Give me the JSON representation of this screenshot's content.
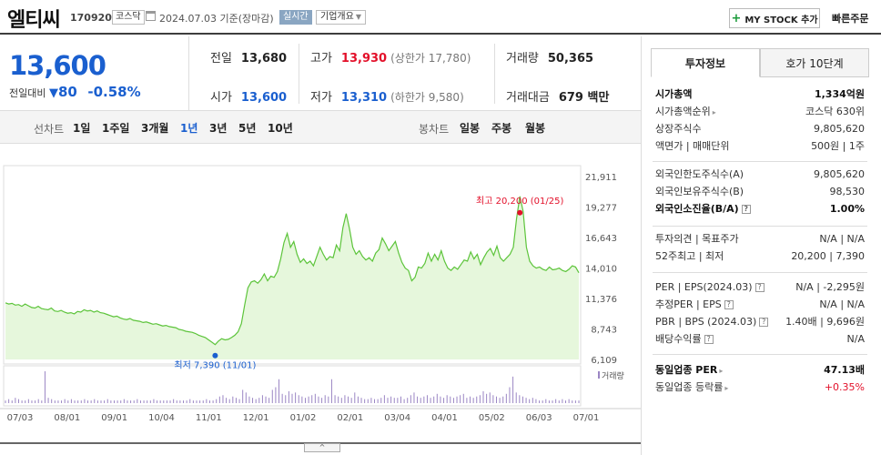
{
  "header": {
    "title": "엘티씨",
    "code": "170920",
    "market": "코스닥",
    "date": "2024.07.03",
    "date_suffix": "기준(장마감)",
    "realtime": "실시간",
    "overview": "기업개요",
    "mystock": "MY STOCK 추가",
    "quick_order": "빠른주문"
  },
  "price": {
    "current": "13,600",
    "change_label": "전일대비",
    "change_value": "80",
    "change_pct": "-0.58%"
  },
  "stats": {
    "prev_close_label": "전일",
    "prev_close": "13,680",
    "high_label": "고가",
    "high": "13,930",
    "upper_limit": "(상한가 17,780)",
    "volume_label": "거래량",
    "volume": "50,365",
    "open_label": "시가",
    "open": "13,600",
    "low_label": "저가",
    "low": "13,310",
    "lower_limit": "(하한가 9,580)",
    "amount_label": "거래대금",
    "amount": "679 백만"
  },
  "tabs": {
    "line_label": "선차트",
    "line_items": [
      "1일",
      "1주일",
      "3개월",
      "1년",
      "3년",
      "5년",
      "10년"
    ],
    "active": "1년",
    "candle_label": "봉차트",
    "candle_items": [
      "일봉",
      "주봉",
      "월봉"
    ]
  },
  "chart_data": {
    "type": "area",
    "ylabel_ticks": [
      "21,911",
      "19,277",
      "16,643",
      "14,010",
      "11,376",
      "8,743",
      "6,109"
    ],
    "ylim": [
      6109,
      21911
    ],
    "x_ticks": [
      "07/03",
      "08/01",
      "09/01",
      "10/04",
      "11/01",
      "12/01",
      "01/02",
      "02/01",
      "03/04",
      "04/01",
      "05/02",
      "06/03",
      "07/01"
    ],
    "high_annotation": "최고 20,200 (01/25)",
    "low_annotation": "최저 7,390 (11/01)",
    "volume_legend": "거래량",
    "color": "#5cc43a",
    "fill": "#e6f7dc",
    "series": [
      {
        "values": [
          11000,
          10900,
          10950,
          10800,
          10850,
          10700,
          10900,
          10750,
          10600,
          10550,
          10700,
          10500,
          10450,
          10400,
          10550,
          10300,
          10250,
          10350,
          10200,
          10100,
          10150,
          10050,
          10250,
          10200,
          10400,
          10300,
          10350,
          10200,
          10300,
          10150,
          10100,
          10000,
          9900,
          9800,
          9850,
          9700,
          9600,
          9550,
          9650,
          9500,
          9450,
          9400,
          9300,
          9350,
          9250,
          9150,
          9200,
          9100,
          9000,
          9050,
          8950,
          8900,
          8850,
          8700,
          8650,
          8550,
          8500,
          8450,
          8350,
          8200,
          8100,
          8000,
          7800,
          7600,
          7390,
          7700,
          7900,
          7800,
          7850,
          8000,
          8200,
          8500,
          9200,
          10800,
          12300,
          12800,
          12900,
          12700,
          13000,
          13500,
          12900,
          13300,
          13200,
          13700,
          14800,
          16200,
          17000,
          15800,
          16300,
          15200,
          14500,
          14800,
          14400,
          14600,
          14200,
          15000,
          15800,
          15200,
          14700,
          15000,
          14900,
          16000,
          15500,
          17500,
          18700,
          17400,
          15800,
          15200,
          15500,
          15000,
          14700,
          14900,
          14600,
          15300,
          15600,
          16600,
          16100,
          15500,
          15900,
          16300,
          15300,
          14500,
          14000,
          13800,
          12900,
          13200,
          14100,
          14000,
          14400,
          15300,
          14600,
          15200,
          14700,
          15500,
          14600,
          14000,
          13800,
          14100,
          13900,
          14300,
          14700,
          14600,
          15400,
          14800,
          15200,
          14300,
          14900,
          15400,
          15700,
          15100,
          15900,
          14900,
          14600,
          14900,
          15200,
          15800,
          18300,
          20200,
          18900,
          15800,
          14600,
          14200,
          14000,
          14100,
          13900,
          13800,
          14100,
          13850,
          13900,
          14000,
          13800,
          13700,
          13900,
          14200,
          14100,
          13600
        ]
      }
    ],
    "volume": [
      2,
      3,
      2,
      4,
      3,
      2,
      2,
      3,
      2,
      2,
      3,
      2,
      24,
      4,
      3,
      2,
      2,
      2,
      3,
      2,
      3,
      2,
      2,
      2,
      3,
      2,
      2,
      3,
      2,
      2,
      2,
      3,
      2,
      2,
      2,
      2,
      3,
      2,
      2,
      2,
      3,
      2,
      2,
      2,
      2,
      3,
      2,
      2,
      2,
      2,
      2,
      3,
      2,
      2,
      2,
      2,
      3,
      2,
      2,
      2,
      2,
      3,
      2,
      2,
      3,
      5,
      6,
      4,
      3,
      5,
      4,
      3,
      10,
      8,
      5,
      4,
      3,
      4,
      6,
      5,
      4,
      10,
      12,
      18,
      7,
      6,
      9,
      7,
      8,
      6,
      5,
      4,
      5,
      6,
      7,
      5,
      4,
      6,
      5,
      18,
      6,
      5,
      4,
      6,
      5,
      4,
      8,
      5,
      4,
      3,
      3,
      4,
      3,
      3,
      4,
      6,
      4,
      5,
      4,
      4,
      5,
      3,
      4,
      6,
      8,
      5,
      4,
      5,
      6,
      4,
      5,
      7,
      5,
      4,
      6,
      5,
      4,
      5,
      6,
      7,
      4,
      5,
      4,
      5,
      6,
      9,
      7,
      8,
      6,
      5,
      4,
      5,
      7,
      12,
      20,
      8,
      6,
      5,
      4,
      3,
      4,
      3,
      2,
      2,
      3,
      2,
      2,
      3,
      2,
      3,
      2,
      3,
      2,
      2,
      2
    ]
  },
  "side": {
    "tab_info": "투자정보",
    "tab_hoga": "호가 10단계",
    "rows1": [
      {
        "k": "시가총액",
        "v": "1,334억원",
        "bold": true
      },
      {
        "k": "시가총액순위",
        "v": "코스닥 630위",
        "arrow": true
      },
      {
        "k": "상장주식수",
        "v": "9,805,620"
      },
      {
        "k": "액면가 | 매매단위",
        "v": "500원 | 1주"
      }
    ],
    "rows2": [
      {
        "k": "외국인한도주식수(A)",
        "v": "9,805,620"
      },
      {
        "k": "외국인보유주식수(B)",
        "v": "98,530"
      },
      {
        "k": "외국인소진율(B/A)",
        "v": "1.00%",
        "bold": true,
        "q": true
      }
    ],
    "rows3": [
      {
        "k": "투자의견 | 목표주가",
        "v": "N/A | N/A"
      },
      {
        "k": "52주최고 | 최저",
        "v": "20,200 | 7,390"
      }
    ],
    "rows4": [
      {
        "k": "PER | EPS(2024.03)",
        "v": "N/A | -2,295원",
        "q": true
      },
      {
        "k": "추정PER | EPS",
        "v": "N/A | N/A",
        "q": true
      },
      {
        "k": "PBR | BPS (2024.03)",
        "v": "1.40배 | 9,696원",
        "q": true
      },
      {
        "k": "배당수익률",
        "v": "N/A",
        "q": true
      }
    ],
    "rows5": [
      {
        "k": "동일업종 PER",
        "v": "47.13배",
        "bold": true,
        "arrow": true
      },
      {
        "k": "동일업종 등락률",
        "v": "+0.35%",
        "red": true,
        "arrow": true
      }
    ]
  },
  "scroll_handle": "^"
}
